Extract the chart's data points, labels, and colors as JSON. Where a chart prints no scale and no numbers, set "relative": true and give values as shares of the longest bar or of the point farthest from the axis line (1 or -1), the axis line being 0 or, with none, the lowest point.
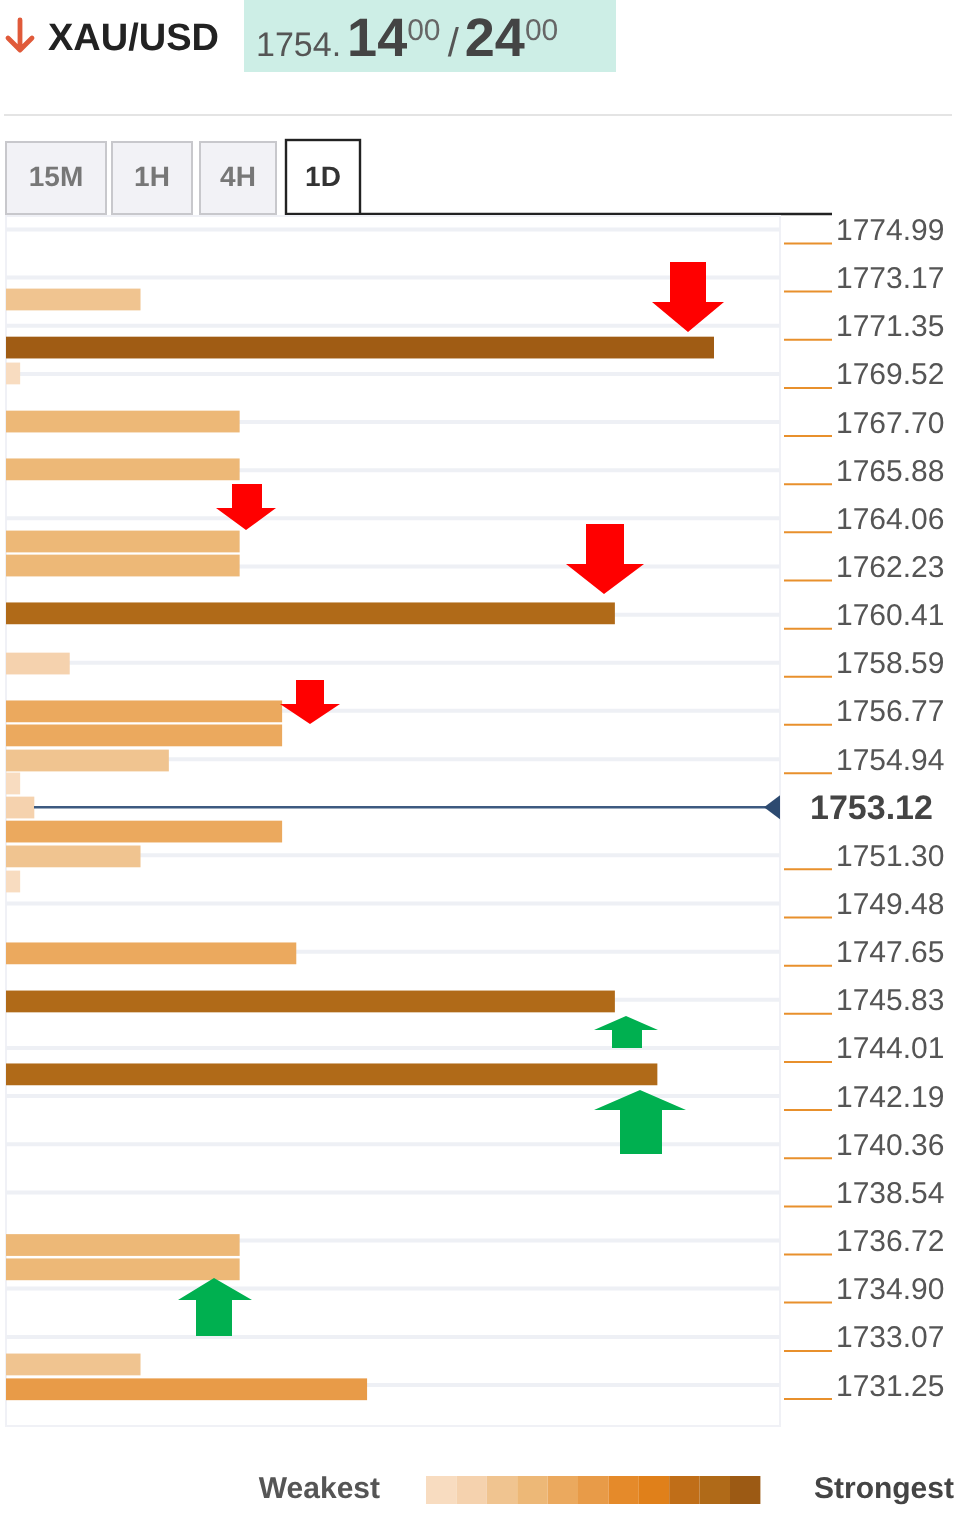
{
  "chart_data": {
    "type": "bar",
    "orientation": "horizontal",
    "relative": true,
    "title": "XAU/USD",
    "subtitle": "1754.14$^{00}$/24$^{00}$",
    "x": [
      1772.34,
      1770.52,
      1769.54,
      1767.72,
      1765.91,
      1763.18,
      1762.27,
      1760.46,
      1758.56,
      1756.75,
      1755.84,
      1754.89,
      1754.02,
      1753.11,
      1752.2,
      1751.26,
      1750.31,
      1747.59,
      1745.77,
      1743.01,
      1736.55,
      1735.63,
      1732.03,
      1731.09
    ],
    "values": [
      0.19,
      1,
      0.02,
      0.33,
      0.33,
      0.33,
      0.33,
      0.86,
      0.09,
      0.39,
      0.39,
      0.23,
      0.02,
      0.04,
      0.39,
      0.19,
      0.02,
      0.41,
      0.86,
      0.92,
      0.33,
      0.33,
      0.19,
      0.51
    ],
    "colors": [
      "#f0c490",
      "#a05c14",
      "#f8dcc0",
      "#edb877",
      "#edb877",
      "#edb877",
      "#edb877",
      "#b06a18",
      "#f5d2ae",
      "#eba95e",
      "#eba95e",
      "#f0c490",
      "#f8dcc0",
      "#f5d2ae",
      "#eba95e",
      "#f0c490",
      "#f8dcc0",
      "#eba95e",
      "#b06a18",
      "#b06a18",
      "#edb877",
      "#edb877",
      "#f0c490",
      "#e89b48"
    ],
    "ylim": [
      1729.7,
      1775.5
    ],
    "yticks": [
      1774.99,
      1773.17,
      1771.35,
      1769.52,
      {
        "value": 1767.7,
        "label": "1767.70"
      },
      {
        "value": 1765.88,
        "label": "1765.88"
      },
      1764.06,
      1762.23,
      1760.41,
      1758.59,
      1756.77,
      1754.94,
      {
        "value": 1751.3,
        "label": "1751.30"
      },
      1749.48,
      1747.65,
      1745.83,
      1744.01,
      1742.19,
      1740.36,
      1738.54,
      1736.72,
      {
        "value": 1734.9,
        "label": "1734.90"
      },
      1733.07,
      1731.25
    ],
    "ref_lines": [
      {
        "axis": "y",
        "value": 1753.12,
        "label": "1753.12",
        "color": "#3d5a80"
      }
    ],
    "grid": "y",
    "annotations": [
      "15M",
      "1H",
      "4H",
      "1D",
      "Weakest",
      "Strongest"
    ]
  }
}
